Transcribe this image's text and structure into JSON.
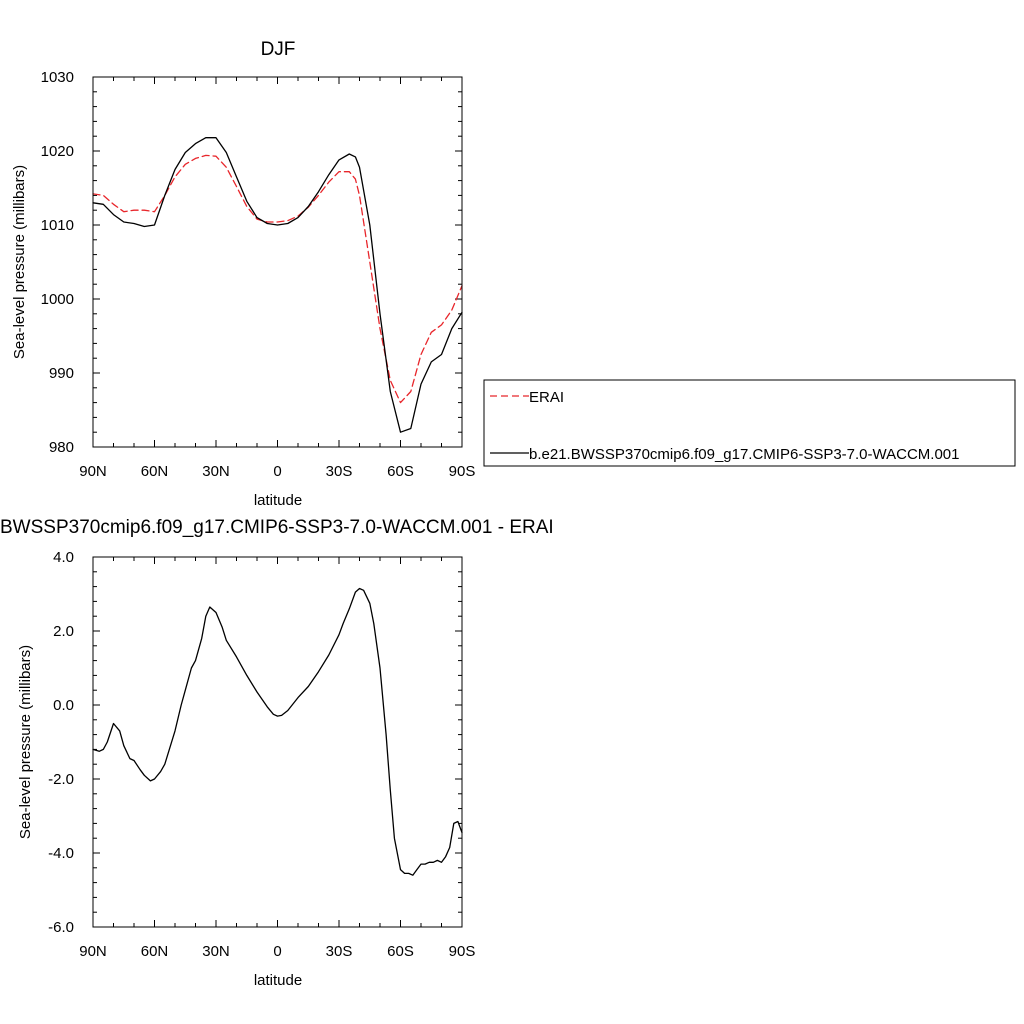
{
  "chart_data": [
    {
      "type": "line",
      "title": "DJF",
      "xlabel": "latitude",
      "ylabel": "Sea-level pressure (millibars)",
      "xlim": [
        90,
        -90
      ],
      "ylim": [
        980,
        1030
      ],
      "x_ticks": [
        90,
        60,
        30,
        0,
        -30,
        -60,
        -90
      ],
      "x_tick_labels": [
        "90N",
        "60N",
        "30N",
        "0",
        "30S",
        "60S",
        "90S"
      ],
      "y_ticks": [
        980,
        990,
        1000,
        1010,
        1020,
        1030
      ],
      "y_tick_labels": [
        "980",
        "990",
        "1000",
        "1010",
        "1020",
        "1030"
      ],
      "grid": false,
      "legend_position": "right",
      "series": [
        {
          "name": "ERAI",
          "color": "#e8262b",
          "dash": "dashed",
          "x": [
            90,
            85,
            80,
            75,
            70,
            65,
            60,
            55,
            50,
            45,
            40,
            35,
            30,
            25,
            20,
            15,
            10,
            5,
            0,
            -5,
            -10,
            -15,
            -20,
            -25,
            -30,
            -35,
            -38,
            -40,
            -45,
            -50,
            -55,
            -60,
            -65,
            -70,
            -75,
            -80,
            -85,
            -90
          ],
          "y": [
            1014.2,
            1014.0,
            1012.8,
            1011.8,
            1012.0,
            1012.0,
            1011.8,
            1014.0,
            1016.5,
            1018.2,
            1019.0,
            1019.4,
            1019.3,
            1017.8,
            1015.2,
            1012.5,
            1010.8,
            1010.4,
            1010.4,
            1010.6,
            1011.2,
            1012.4,
            1014.0,
            1015.8,
            1017.2,
            1017.2,
            1016.2,
            1014.0,
            1005.0,
            996.0,
            989.0,
            986.0,
            987.5,
            992.5,
            995.5,
            996.5,
            998.5,
            1001.8
          ]
        },
        {
          "name": "b.e21.BWSSP370cmip6.f09_g17.CMIP6-SSP3-7.0-WACCM.001",
          "color": "#000000",
          "dash": "solid",
          "x": [
            90,
            85,
            80,
            75,
            70,
            65,
            60,
            55,
            50,
            45,
            40,
            35,
            30,
            25,
            20,
            15,
            10,
            5,
            0,
            -5,
            -10,
            -15,
            -20,
            -25,
            -30,
            -35,
            -38,
            -40,
            -45,
            -50,
            -55,
            -60,
            -65,
            -70,
            -75,
            -80,
            -85,
            -90
          ],
          "y": [
            1013.0,
            1012.8,
            1011.4,
            1010.4,
            1010.2,
            1009.8,
            1010.0,
            1014.0,
            1017.5,
            1019.8,
            1021.0,
            1021.8,
            1021.8,
            1019.8,
            1016.5,
            1013.2,
            1011.0,
            1010.2,
            1010.0,
            1010.2,
            1011.0,
            1012.5,
            1014.5,
            1016.8,
            1018.8,
            1019.6,
            1019.2,
            1017.8,
            1010.0,
            998.0,
            987.5,
            982.0,
            982.5,
            988.5,
            991.5,
            992.5,
            996.0,
            998.2
          ]
        }
      ]
    },
    {
      "type": "line",
      "title": "BWSSP370cmip6.f09_g17.CMIP6-SSP3-7.0-WACCM.001 - ERAI",
      "xlabel": "latitude",
      "ylabel": "Sea-level pressure (millibars)",
      "xlim": [
        90,
        -90
      ],
      "ylim": [
        -6.0,
        4.0
      ],
      "x_ticks": [
        90,
        60,
        30,
        0,
        -30,
        -60,
        -90
      ],
      "x_tick_labels": [
        "90N",
        "60N",
        "30N",
        "0",
        "30S",
        "60S",
        "90S"
      ],
      "y_ticks": [
        -6.0,
        -4.0,
        -2.0,
        0.0,
        2.0,
        4.0
      ],
      "y_tick_labels": [
        "-6.0",
        "-4.0",
        "-2.0",
        "0.0",
        "2.0",
        "4.0"
      ],
      "grid": false,
      "series": [
        {
          "color": "#000000",
          "dash": "solid",
          "x": [
            90,
            87,
            85,
            83,
            80,
            77,
            75,
            72,
            70,
            67,
            65,
            62,
            60,
            57,
            55,
            50,
            47,
            45,
            42,
            40,
            37,
            35,
            33,
            30,
            27,
            25,
            20,
            15,
            10,
            5,
            2,
            0,
            -2,
            -5,
            -10,
            -15,
            -20,
            -25,
            -30,
            -32,
            -35,
            -38,
            -40,
            -42,
            -45,
            -47,
            -50,
            -53,
            -55,
            -57,
            -60,
            -62,
            -64,
            -66,
            -68,
            -70,
            -72,
            -74,
            -76,
            -78,
            -80,
            -82,
            -84,
            -86,
            -88,
            -90
          ],
          "y": [
            -1.2,
            -1.25,
            -1.2,
            -1.0,
            -0.5,
            -0.7,
            -1.1,
            -1.45,
            -1.5,
            -1.75,
            -1.9,
            -2.05,
            -2.0,
            -1.8,
            -1.6,
            -0.7,
            0.0,
            0.4,
            1.0,
            1.2,
            1.8,
            2.4,
            2.65,
            2.5,
            2.1,
            1.75,
            1.3,
            0.8,
            0.35,
            -0.05,
            -0.25,
            -0.3,
            -0.28,
            -0.15,
            0.2,
            0.5,
            0.9,
            1.35,
            1.9,
            2.2,
            2.6,
            3.05,
            3.15,
            3.1,
            2.75,
            2.2,
            1.0,
            -0.8,
            -2.3,
            -3.6,
            -4.45,
            -4.55,
            -4.55,
            -4.6,
            -4.45,
            -4.3,
            -4.3,
            -4.25,
            -4.25,
            -4.2,
            -4.25,
            -4.1,
            -3.85,
            -3.2,
            -3.15,
            -3.45
          ]
        }
      ]
    }
  ]
}
